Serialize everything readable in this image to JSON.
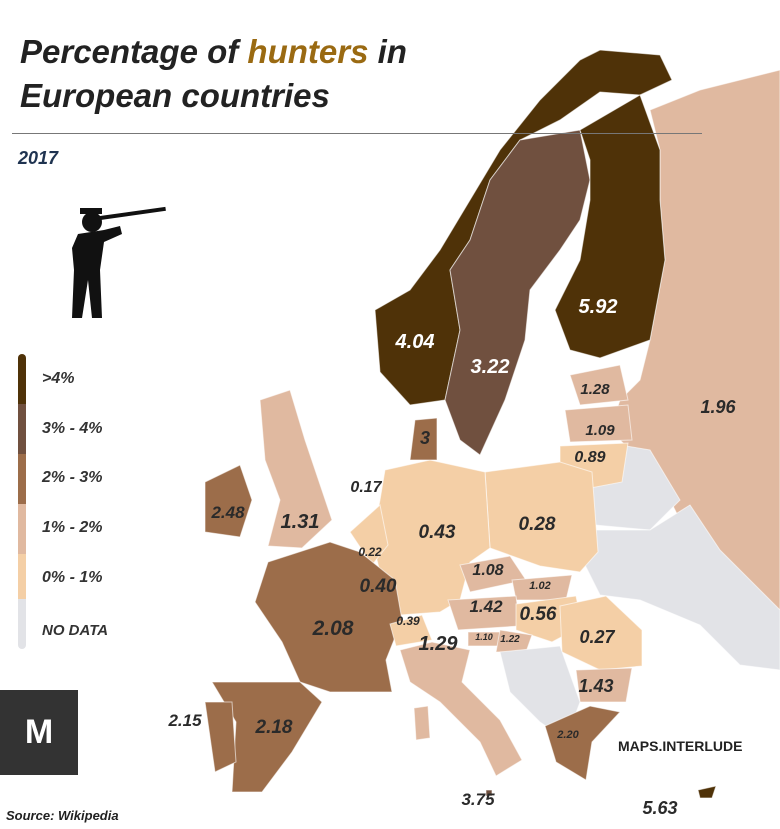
{
  "title": {
    "prefix": "Percentage of ",
    "highlight": "hunters",
    "suffix": " in",
    "line2": "European countries"
  },
  "subtitle": "2017",
  "colors": {
    "gt4": "#4f3208",
    "3to4": "#70503f",
    "2to3": "#9c6d4a",
    "1to2": "#e0b9a0",
    "0to1": "#f4cfa6",
    "nodata": "#e2e3e7",
    "highlight": "#9a6a12"
  },
  "legend": [
    {
      "label": ">4%",
      "color": "#4f3208"
    },
    {
      "label": "3% - 4%",
      "color": "#70503f"
    },
    {
      "label": "2% - 3%",
      "color": "#9c6d4a"
    },
    {
      "label": "1% - 2%",
      "color": "#e0b9a0"
    },
    {
      "label": "0% - 1%",
      "color": "#f4cfa6"
    },
    {
      "label": "NO DATA",
      "color": "#e2e3e7"
    }
  ],
  "labels": [
    "4.04",
    "3.22",
    "5.92",
    "1.96",
    "1.28",
    "1.09",
    "0.89",
    "3",
    "0.17",
    "2.48",
    "1.31",
    "0.43",
    "0.28",
    "0.22",
    "0.40",
    "1.08",
    "1.02",
    "1.42",
    "0.56",
    "0.39",
    "1.10",
    "1.22",
    "2.08",
    "1.29",
    "0.27",
    "1.43",
    "2.15",
    "2.18",
    "2.20",
    "3.75",
    "5.63"
  ],
  "icon": "hunter-with-rifle-icon",
  "logo": "M",
  "brand": "MAPS.INTERLUDE",
  "source": "Source: Wikipedia"
}
